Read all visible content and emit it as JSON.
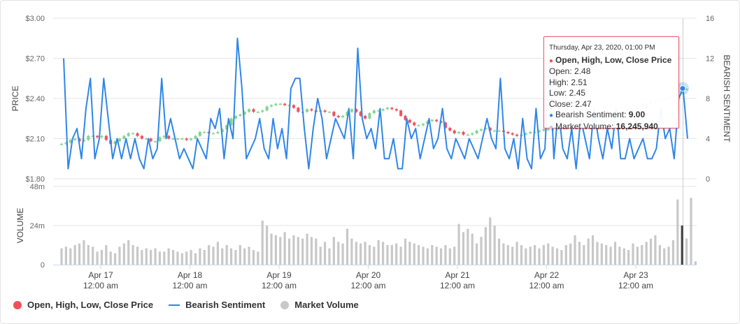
{
  "chart_data": {
    "type": "candlestick",
    "title": "",
    "colors": {
      "up": "#7fd68f",
      "down": "#f0505c",
      "sentiment": "#2f86e9",
      "volume": "#c8c8c8",
      "volume_highlight": "#444444"
    },
    "x_axis": {
      "ticks": [
        {
          "day": "Apr 17",
          "time": "12:00 am"
        },
        {
          "day": "Apr 18",
          "time": "12:00 am"
        },
        {
          "day": "Apr 19",
          "time": "12:00 am"
        },
        {
          "day": "Apr 20",
          "time": "12:00 am"
        },
        {
          "day": "Apr 21",
          "time": "12:00 am"
        },
        {
          "day": "Apr 22",
          "time": "12:00 am"
        },
        {
          "day": "Apr 23",
          "time": "12:00 am"
        }
      ],
      "range": [
        "2020-04-16 06:00",
        "2020-04-23 10:00"
      ]
    },
    "price_axis": {
      "label": "PRICE",
      "ticks": [
        "$3.00",
        "$2.70",
        "$2.40",
        "$2.10",
        "$1.80"
      ],
      "range": [
        1.8,
        3.0
      ],
      "grid": true
    },
    "sentiment_axis": {
      "label": "BEARISH SENTIMENT",
      "ticks": [
        "16",
        "12",
        "8",
        "4",
        "0"
      ],
      "range": [
        0,
        16
      ]
    },
    "volume_axis": {
      "label": "VOLUME",
      "ticks": [
        "48m",
        "24m",
        "0"
      ],
      "range": [
        0,
        48000000
      ]
    },
    "series": [
      {
        "name": "Open, High, Low, Close Price",
        "kind": "ohlc"
      },
      {
        "name": "Bearish Sentiment",
        "kind": "line"
      },
      {
        "name": "Market Volume",
        "kind": "column"
      }
    ],
    "price_close": [
      2.06,
      2.07,
      2.09,
      2.1,
      2.08,
      2.09,
      2.12,
      2.12,
      2.11,
      2.12,
      2.09,
      2.06,
      2.08,
      2.1,
      2.12,
      2.14,
      2.14,
      2.12,
      2.1,
      2.1,
      2.08,
      2.08,
      2.11,
      2.12,
      2.1,
      2.1,
      2.1,
      2.1,
      2.09,
      2.1,
      2.12,
      2.15,
      2.15,
      2.14,
      2.14,
      2.15,
      2.17,
      2.2,
      2.25,
      2.27,
      2.28,
      2.3,
      2.32,
      2.3,
      2.3,
      2.31,
      2.34,
      2.35,
      2.36,
      2.36,
      2.35,
      2.35,
      2.33,
      2.3,
      2.3,
      2.32,
      2.31,
      2.3,
      2.31,
      2.3,
      2.3,
      2.27,
      2.26,
      2.27,
      2.3,
      2.32,
      2.3,
      2.27,
      2.25,
      2.29,
      2.31,
      2.31,
      2.32,
      2.33,
      2.32,
      2.31,
      2.27,
      2.24,
      2.22,
      2.2,
      2.2,
      2.21,
      2.23,
      2.24,
      2.23,
      2.22,
      2.18,
      2.16,
      2.14,
      2.15,
      2.13,
      2.13,
      2.14,
      2.16,
      2.17,
      2.18,
      2.16,
      2.16,
      2.16,
      2.15,
      2.14,
      2.13,
      2.12,
      2.13,
      2.14,
      2.15,
      2.15,
      2.16,
      2.17,
      2.17,
      2.17,
      2.18,
      2.19,
      2.2,
      2.19,
      2.19,
      2.18,
      2.18,
      2.19,
      2.2,
      2.21,
      2.23,
      2.24,
      2.24,
      2.26,
      2.28,
      2.29,
      2.3,
      2.32,
      2.33,
      2.33,
      2.36,
      2.37,
      2.38,
      2.39,
      2.4,
      2.41,
      2.42,
      2.44,
      2.47,
      2.47
    ],
    "sentiment": [
      12,
      1,
      4,
      5,
      2,
      7,
      10,
      2,
      4,
      10,
      6,
      2,
      4,
      2,
      4,
      2,
      4,
      2,
      1,
      4,
      2,
      3,
      10,
      4,
      6,
      4,
      2,
      3,
      2,
      1,
      4,
      3,
      2,
      6,
      5,
      7,
      2,
      6,
      4,
      14,
      9,
      2,
      3,
      4,
      6,
      3,
      2,
      6,
      3,
      5,
      2,
      9,
      10,
      10,
      5,
      1,
      5,
      8,
      6,
      2,
      4,
      6,
      5,
      4,
      7,
      2,
      13,
      6,
      4,
      5,
      3,
      7,
      2,
      2,
      4,
      1,
      1,
      6,
      4,
      5,
      2,
      4,
      6,
      3,
      4,
      7,
      3,
      2,
      4,
      3,
      2,
      4,
      3,
      2,
      4,
      6,
      4,
      3,
      10,
      3,
      2,
      4,
      1,
      6,
      2,
      1,
      7,
      2,
      3,
      12,
      2,
      7,
      3,
      2,
      5,
      1,
      6,
      4,
      2,
      7,
      4,
      2,
      5,
      3,
      7,
      2,
      2,
      4,
      2,
      3,
      4,
      2,
      2,
      3,
      7,
      4,
      5,
      2,
      8,
      9,
      4
    ],
    "volume": [
      10,
      11,
      10,
      12,
      13,
      15,
      12,
      11,
      8,
      9,
      12,
      8,
      7,
      11,
      13,
      15,
      12,
      11,
      9,
      10,
      9,
      10,
      8,
      8,
      10,
      9,
      8,
      7,
      8,
      9,
      7,
      10,
      9,
      12,
      11,
      14,
      10,
      12,
      10,
      9,
      12,
      10,
      11,
      9,
      8,
      27,
      24,
      19,
      18,
      17,
      20,
      16,
      18,
      17,
      16,
      19,
      17,
      16,
      11,
      14,
      10,
      17,
      14,
      13,
      22,
      16,
      14,
      13,
      14,
      12,
      11,
      15,
      14,
      12,
      12,
      13,
      11,
      16,
      14,
      13,
      12,
      11,
      10,
      12,
      11,
      10,
      12,
      10,
      11,
      25,
      20,
      22,
      19,
      13,
      17,
      23,
      29,
      24,
      16,
      13,
      12,
      11,
      14,
      12,
      10,
      11,
      12,
      10,
      12,
      13,
      11,
      10,
      9,
      12,
      13,
      18,
      14,
      12,
      16,
      18,
      14,
      13,
      12,
      11,
      14,
      11,
      10,
      9,
      13,
      11,
      12,
      14,
      16,
      18,
      12,
      10,
      11,
      15,
      40,
      24,
      16,
      41,
      2
    ]
  },
  "tooltip": {
    "datetime": "Thursday, Apr 23, 2020, 01:00 PM",
    "series_name": "Open, High, Low, Close Price",
    "open": "Open: 2.48",
    "high": "High: 2.51",
    "low": "Low: 2.45",
    "close": "Close: 2.47",
    "sentiment_label": "Bearish Sentiment: ",
    "sentiment_value": "9.00",
    "volume_label": "Market Volume: ",
    "volume_value": "16,245,940"
  },
  "legend": [
    {
      "label": "Open, High, Low, Close Price",
      "color": "#f0505c",
      "symbol": "dot"
    },
    {
      "label": "Bearish Sentiment",
      "color": "#2f86e9",
      "symbol": "line"
    },
    {
      "label": "Market Volume",
      "color": "#c8c8c8",
      "symbol": "dot"
    }
  ]
}
